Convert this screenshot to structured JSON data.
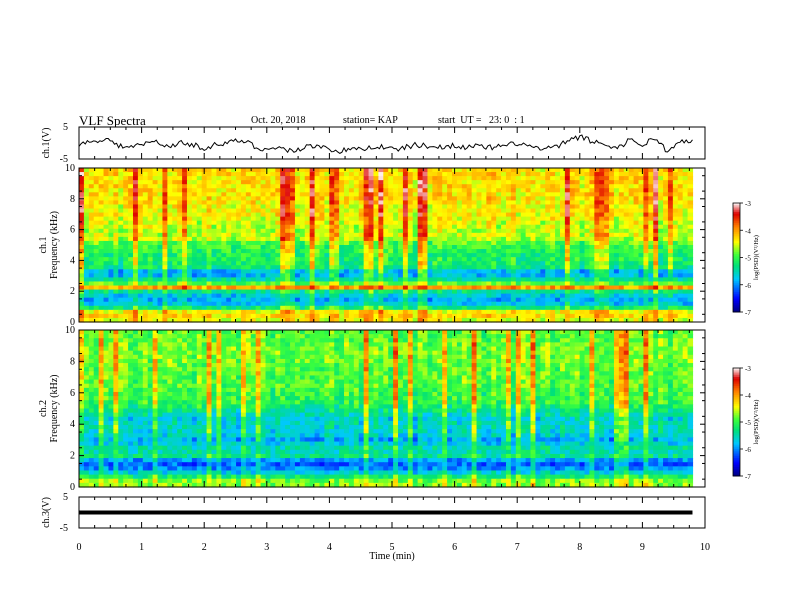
{
  "header": {
    "title": "VLF Spectra",
    "date": "Oct. 20, 2018",
    "station": "station= KAP",
    "start_ut": "start  UT =   23: 0  : 1"
  },
  "colors": {
    "axis": "#000000",
    "trace": "#000000",
    "colormap": [
      "#000080",
      "#0000ff",
      "#00c8ff",
      "#00e07a",
      "#33ff33",
      "#ffff00",
      "#ff8000",
      "#dd0000",
      "#ffffff"
    ]
  },
  "chart_data": [
    {
      "type": "line",
      "name": "ch1-waveform",
      "ylabel": "ch.1(V)",
      "ylim": [
        -5,
        5
      ],
      "yticks": [
        "5",
        "-5"
      ],
      "xlim": [
        0,
        10
      ],
      "x": [
        0.0,
        0.2,
        0.4,
        0.6,
        0.8,
        1.0,
        1.2,
        1.4,
        1.6,
        1.8,
        2.0,
        2.2,
        2.4,
        2.6,
        2.8,
        3.0,
        3.2,
        3.4,
        3.6,
        3.8,
        4.0,
        4.2,
        4.4,
        4.6,
        4.8,
        5.0,
        5.2,
        5.4,
        5.6,
        5.8,
        6.0,
        6.2,
        6.4,
        6.6,
        6.8,
        7.0,
        7.2,
        7.4,
        7.6,
        7.8,
        8.0,
        8.2,
        8.4,
        8.6,
        8.8,
        9.0,
        9.2,
        9.4,
        9.6,
        9.8
      ],
      "y": [
        -0.5,
        0.5,
        1.5,
        -0.5,
        -1.5,
        -0.5,
        0.5,
        -1.0,
        0.0,
        -0.5,
        -1.5,
        -0.5,
        0.0,
        1.0,
        -1.0,
        -2.0,
        -1.5,
        -2.5,
        -1.5,
        -0.5,
        -2.0,
        -2.5,
        -2.0,
        -1.5,
        -1.0,
        -2.0,
        -1.5,
        -0.5,
        -1.0,
        -1.5,
        -0.5,
        -1.5,
        -1.0,
        -1.5,
        -1.0,
        0.0,
        -1.0,
        -2.0,
        -1.5,
        0.5,
        2.0,
        0.5,
        -0.5,
        -1.5,
        1.0,
        -0.5,
        1.5,
        -2.5,
        0.0,
        1.0
      ]
    },
    {
      "type": "heatmap",
      "name": "ch1-spectrogram",
      "ylabel": "ch.1\nFrequency  (kHz)",
      "xlim": [
        0,
        10
      ],
      "ylim": [
        0,
        10
      ],
      "yticks": [
        0,
        2,
        4,
        6,
        8,
        10
      ],
      "z_profile_kHz": [
        0,
        0.25,
        0.5,
        0.75,
        1,
        1.25,
        1.5,
        1.75,
        2,
        2.25,
        2.5,
        2.75,
        3,
        3.25,
        3.5,
        3.75,
        4,
        4.25,
        4.5,
        4.75,
        5,
        5.25,
        5.5,
        5.75,
        6,
        6.5,
        7,
        7.5,
        8,
        8.5,
        9,
        9.5,
        10
      ],
      "z_profile_log": [
        -4.6,
        -4.4,
        -4.2,
        -4.5,
        -5.6,
        -5.8,
        -5.9,
        -5.7,
        -5.3,
        -4.0,
        -4.9,
        -5.4,
        -5.8,
        -5.9,
        -5.3,
        -5.2,
        -5.1,
        -5.2,
        -5.1,
        -5.0,
        -5.0,
        -4.8,
        -4.5,
        -4.6,
        -4.6,
        -4.5,
        -4.4,
        -4.4,
        -4.3,
        -4.3,
        -4.3,
        -4.3,
        -4.3
      ],
      "colorbar": {
        "label": "log(PSD)(V²/Hz)",
        "ticks": [
          "-3",
          "-4",
          "-5",
          "-6",
          "-7"
        ],
        "range": [
          -7,
          -3
        ]
      }
    },
    {
      "type": "heatmap",
      "name": "ch2-spectrogram",
      "ylabel": "ch.2\nFrequency  (kHz)",
      "xlim": [
        0,
        10
      ],
      "ylim": [
        0,
        10
      ],
      "yticks": [
        0,
        2,
        4,
        6,
        8,
        10
      ],
      "z_profile_kHz": [
        0,
        0.25,
        0.5,
        0.75,
        1,
        1.25,
        1.5,
        1.75,
        2,
        2.25,
        2.5,
        2.75,
        3,
        3.25,
        3.5,
        3.75,
        4,
        4.25,
        4.5,
        4.75,
        5,
        5.5,
        6,
        6.5,
        7,
        7.5,
        8,
        8.5,
        9,
        9.5,
        10
      ],
      "z_profile_log": [
        -4.8,
        -4.7,
        -4.9,
        -5.4,
        -5.8,
        -6.1,
        -6.2,
        -5.9,
        -5.3,
        -5.5,
        -5.5,
        -5.7,
        -5.9,
        -5.7,
        -5.6,
        -5.6,
        -5.5,
        -5.7,
        -5.6,
        -5.4,
        -5.3,
        -5.0,
        -5.0,
        -4.9,
        -4.9,
        -4.9,
        -4.8,
        -4.8,
        -4.8,
        -4.9,
        -4.9
      ],
      "colorbar": {
        "label": "log(PSD)(V²/Hz)",
        "ticks": [
          "-3",
          "-4",
          "-5",
          "-6",
          "-7"
        ],
        "range": [
          -7,
          -3
        ]
      }
    },
    {
      "type": "line",
      "name": "ch3-waveform",
      "ylabel": "ch.3(V)",
      "ylim": [
        -5,
        5
      ],
      "yticks": [
        "5",
        "-5"
      ],
      "xlim": [
        0,
        10
      ],
      "x": [
        0,
        9.8
      ],
      "y": [
        0,
        0
      ]
    }
  ],
  "xaxis": {
    "label": "Time  (min)",
    "ticks": [
      "0",
      "1",
      "2",
      "3",
      "4",
      "5",
      "6",
      "7",
      "8",
      "9",
      "10"
    ]
  }
}
